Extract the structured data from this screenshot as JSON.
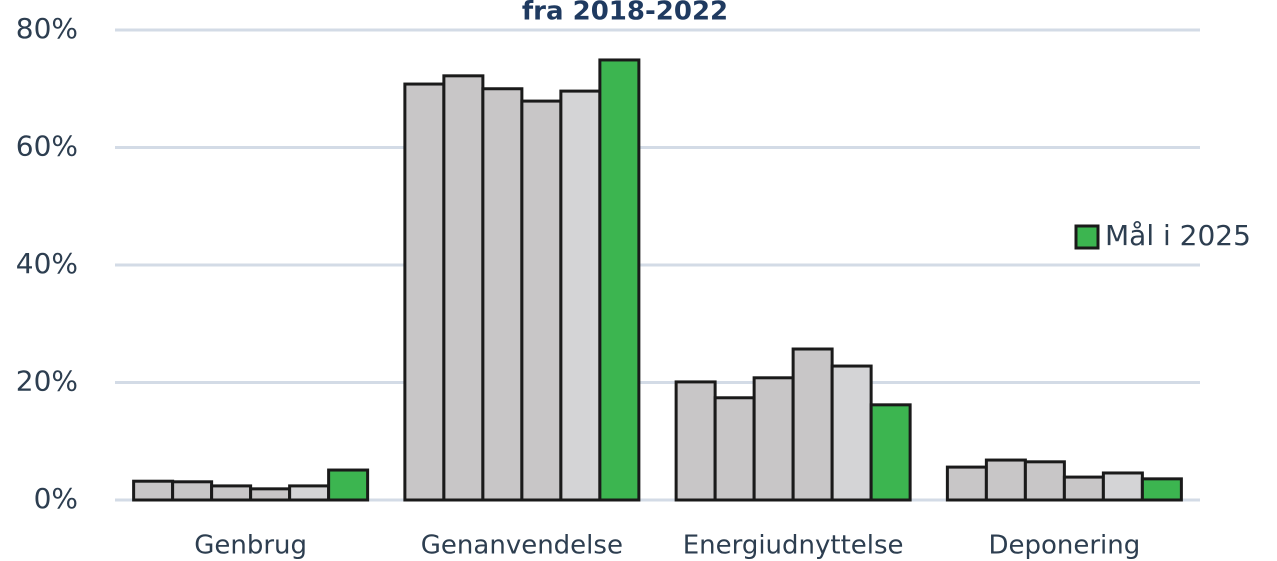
{
  "chart_data": {
    "type": "bar",
    "title": "fra 2018-2022",
    "categories": [
      "Genbrug",
      "Genanvendelse",
      "Energiudnyttelse",
      "Deponering"
    ],
    "series": [
      {
        "color": "#c8c6c7",
        "values": [
          3.2,
          70.8,
          20.1,
          5.6
        ]
      },
      {
        "color": "#c8c6c7",
        "values": [
          3.1,
          72.2,
          17.4,
          6.8
        ]
      },
      {
        "color": "#c8c6c7",
        "values": [
          2.4,
          70.0,
          20.8,
          6.5
        ]
      },
      {
        "color": "#c8c6c7",
        "values": [
          1.9,
          67.9,
          25.7,
          3.9
        ]
      },
      {
        "color": "#d4d4d6",
        "values": [
          2.4,
          69.6,
          22.8,
          4.6
        ]
      },
      {
        "name": "Mål i 2025",
        "color": "#3cb550",
        "values": [
          5.1,
          74.9,
          16.2,
          3.6
        ]
      }
    ],
    "ylim": [
      0,
      80
    ],
    "yticks": [
      {
        "value": 0,
        "label": "0%"
      },
      {
        "value": 20,
        "label": "20%"
      },
      {
        "value": 40,
        "label": "40%"
      },
      {
        "value": 60,
        "label": "60%"
      },
      {
        "value": 80,
        "label": "80%"
      }
    ],
    "grid": true,
    "legend": "right"
  }
}
